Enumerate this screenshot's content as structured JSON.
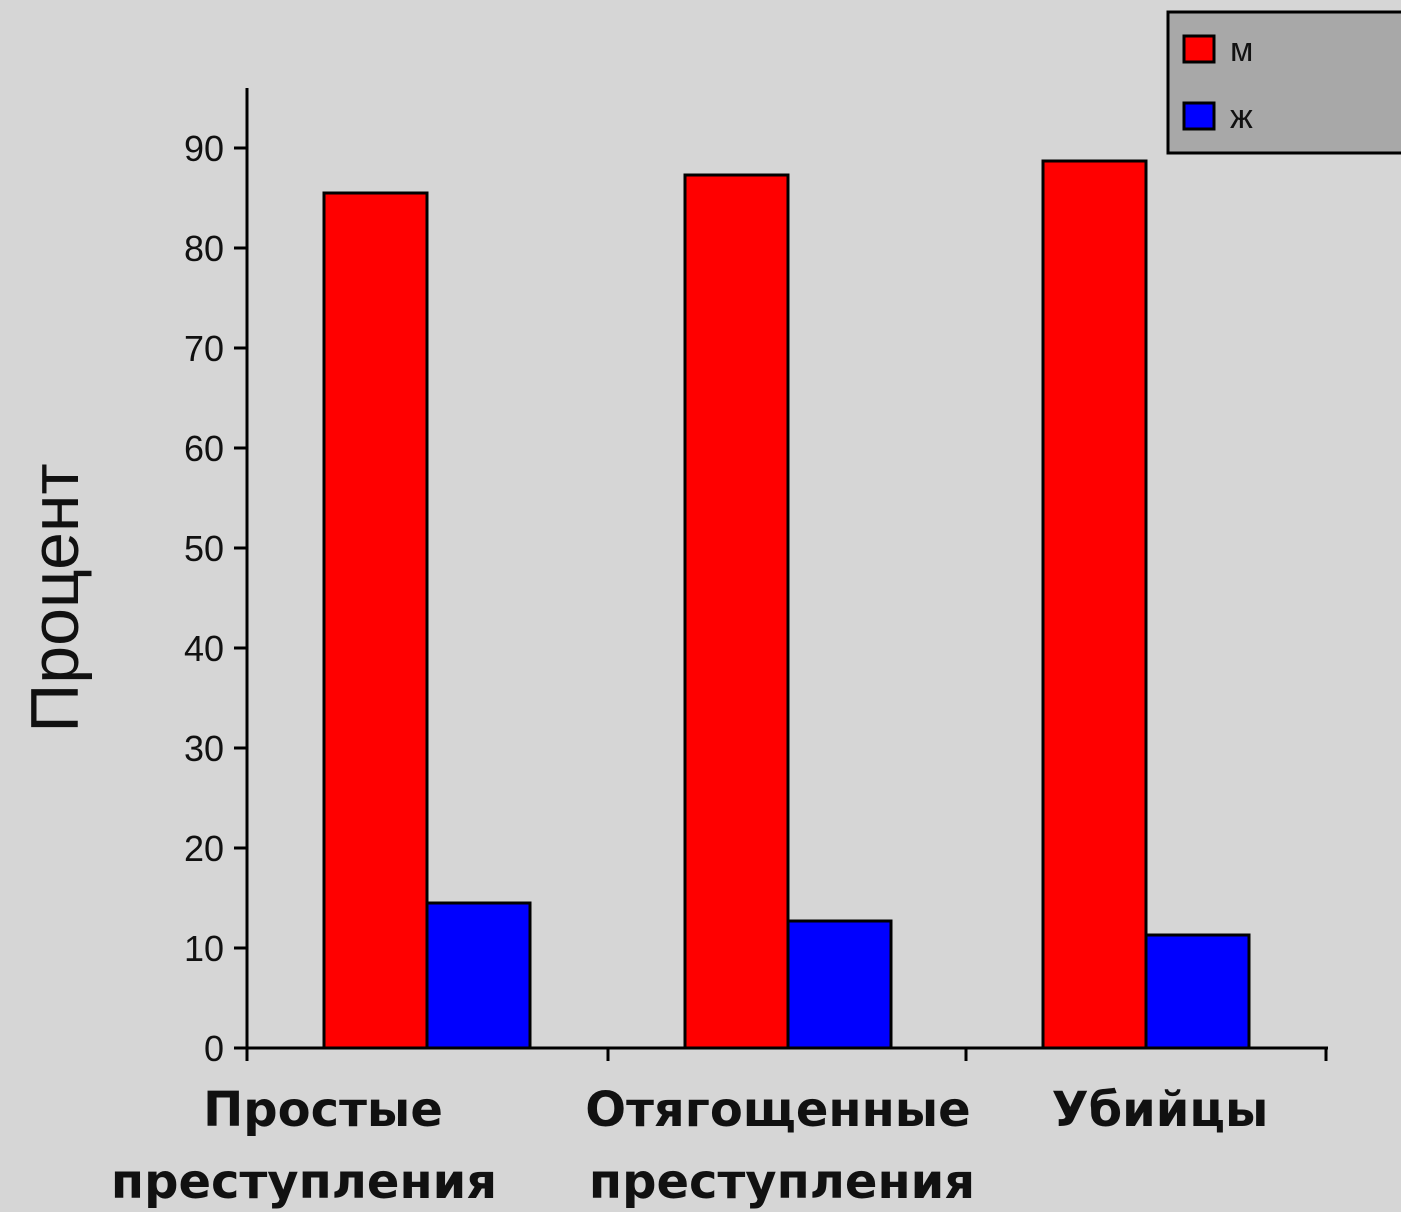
{
  "chart_data": {
    "type": "bar",
    "title": "",
    "ylabel": "Процент",
    "xlabel": "",
    "categories": [
      [
        "Простые",
        "преступления"
      ],
      [
        "Отягощенные",
        "преступления"
      ],
      [
        "Убийцы"
      ]
    ],
    "series": [
      {
        "name": "м",
        "color": "#ff0000",
        "values": [
          85.5,
          87.3,
          88.7
        ]
      },
      {
        "name": "ж",
        "color": "#0000ff",
        "values": [
          14.5,
          12.7,
          11.3
        ]
      }
    ],
    "ylim": [
      0,
      96
    ],
    "yticks": [
      0,
      10,
      20,
      30,
      40,
      50,
      60,
      70,
      80,
      90
    ],
    "grid": false,
    "legend_position": "top-right"
  }
}
